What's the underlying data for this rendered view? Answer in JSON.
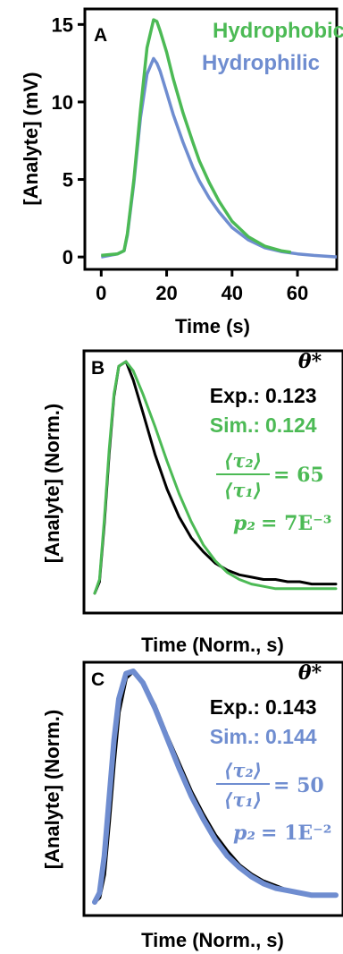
{
  "colors": {
    "hydrophobic": "#4cba55",
    "hydrophilic": "#6f8dd0",
    "experimental": "#000000"
  },
  "chart_data": [
    {
      "panel": "A",
      "type": "line",
      "xlabel": "Time (s)",
      "ylabel": "[Analyte] (mV)",
      "xlim": [
        -5,
        72
      ],
      "ylim": [
        -0.8,
        16
      ],
      "xticks": [
        "0",
        "20",
        "40",
        "60"
      ],
      "yticks": [
        "0",
        "5",
        "10",
        "15"
      ],
      "legend": "top-right",
      "series": [
        {
          "name": "Hydrophobic",
          "color": "#4cba55",
          "x": [
            0,
            5,
            7,
            8,
            10,
            12,
            14,
            16,
            17,
            18,
            20,
            22,
            25,
            28,
            30,
            33,
            36,
            40,
            45,
            50,
            55,
            58
          ],
          "y": [
            0.1,
            0.2,
            0.4,
            1.5,
            5,
            9.5,
            13.5,
            15.3,
            15.2,
            14.6,
            13.2,
            11.5,
            9.3,
            7.4,
            6.2,
            4.8,
            3.6,
            2.3,
            1.3,
            0.7,
            0.4,
            0.3
          ]
        },
        {
          "name": "Hydrophilic",
          "color": "#6f8dd0",
          "x": [
            0,
            5,
            7,
            8,
            10,
            12,
            14,
            16,
            17,
            18,
            20,
            22,
            25,
            28,
            30,
            33,
            36,
            40,
            45,
            50,
            55,
            60,
            65,
            72
          ],
          "y": [
            0,
            0.2,
            0.4,
            1.4,
            4.8,
            9,
            11.8,
            12.8,
            12.5,
            12,
            10.6,
            9.2,
            7.4,
            5.8,
            4.9,
            3.8,
            2.9,
            1.9,
            1.1,
            0.6,
            0.35,
            0.2,
            0.1,
            0
          ]
        }
      ]
    },
    {
      "panel": "B",
      "type": "line",
      "xlabel": "Time (Norm., s)",
      "ylabel": "[Analyte] (Norm.)",
      "x": [
        0,
        0.02,
        0.04,
        0.06,
        0.08,
        0.1,
        0.13,
        0.16,
        0.2,
        0.25,
        0.3,
        0.35,
        0.4,
        0.45,
        0.5,
        0.55,
        0.6,
        0.65,
        0.7,
        0.75,
        0.8,
        0.85,
        0.9,
        0.95,
        1.0
      ],
      "series": [
        {
          "name": "Exp.",
          "color": "#000000",
          "y": [
            0,
            0.05,
            0.3,
            0.6,
            0.85,
            0.98,
            1.0,
            0.92,
            0.78,
            0.6,
            0.45,
            0.33,
            0.24,
            0.18,
            0.13,
            0.1,
            0.08,
            0.07,
            0.06,
            0.06,
            0.05,
            0.05,
            0.04,
            0.04,
            0.04
          ]
        },
        {
          "name": "Sim.",
          "color": "#4cba55",
          "y": [
            0,
            0.06,
            0.32,
            0.62,
            0.86,
            0.98,
            1.0,
            0.96,
            0.86,
            0.72,
            0.57,
            0.43,
            0.31,
            0.21,
            0.14,
            0.09,
            0.06,
            0.04,
            0.03,
            0.02,
            0.02,
            0.02,
            0.02,
            0.02,
            0.02
          ]
        }
      ],
      "annotations": {
        "theta": "θ*",
        "exp_label": "Exp.:",
        "exp_value": "0.123",
        "sim_label": "Sim.:",
        "sim_value": "0.124",
        "tau_num": "⟨τ₂⟩",
        "tau_den": "⟨τ₁⟩",
        "tau_value": "= 65",
        "p2_label": "p₂",
        "p2_value": "= 7E⁻³"
      }
    },
    {
      "panel": "C",
      "type": "line",
      "xlabel": "Time (Norm., s)",
      "ylabel": "[Analyte] (Norm.)",
      "x": [
        0,
        0.02,
        0.04,
        0.06,
        0.08,
        0.1,
        0.13,
        0.16,
        0.2,
        0.25,
        0.3,
        0.35,
        0.4,
        0.45,
        0.5,
        0.55,
        0.6,
        0.65,
        0.7,
        0.75,
        0.8,
        0.85,
        0.9,
        0.95,
        1.0
      ],
      "series": [
        {
          "name": "Exp.",
          "color": "#000000",
          "y": [
            0,
            0.02,
            0.12,
            0.35,
            0.6,
            0.82,
            0.97,
            1.0,
            0.95,
            0.85,
            0.72,
            0.6,
            0.48,
            0.38,
            0.29,
            0.22,
            0.16,
            0.12,
            0.09,
            0.07,
            0.05,
            0.04,
            0.03,
            0.03,
            0.03
          ]
        },
        {
          "name": "Sim.",
          "color": "#6f8dd0",
          "y": [
            0,
            0.04,
            0.2,
            0.45,
            0.7,
            0.88,
            0.99,
            1.0,
            0.95,
            0.84,
            0.71,
            0.58,
            0.46,
            0.36,
            0.27,
            0.2,
            0.15,
            0.11,
            0.08,
            0.06,
            0.05,
            0.04,
            0.03,
            0.03,
            0.03
          ]
        }
      ],
      "annotations": {
        "theta": "θ*",
        "exp_label": "Exp.:",
        "exp_value": "0.143",
        "sim_label": "Sim.:",
        "sim_value": "0.144",
        "tau_num": "⟨τ₂⟩",
        "tau_den": "⟨τ₁⟩",
        "tau_value": "= 50",
        "p2_label": "p₂",
        "p2_value": "= 1E⁻²"
      }
    }
  ]
}
